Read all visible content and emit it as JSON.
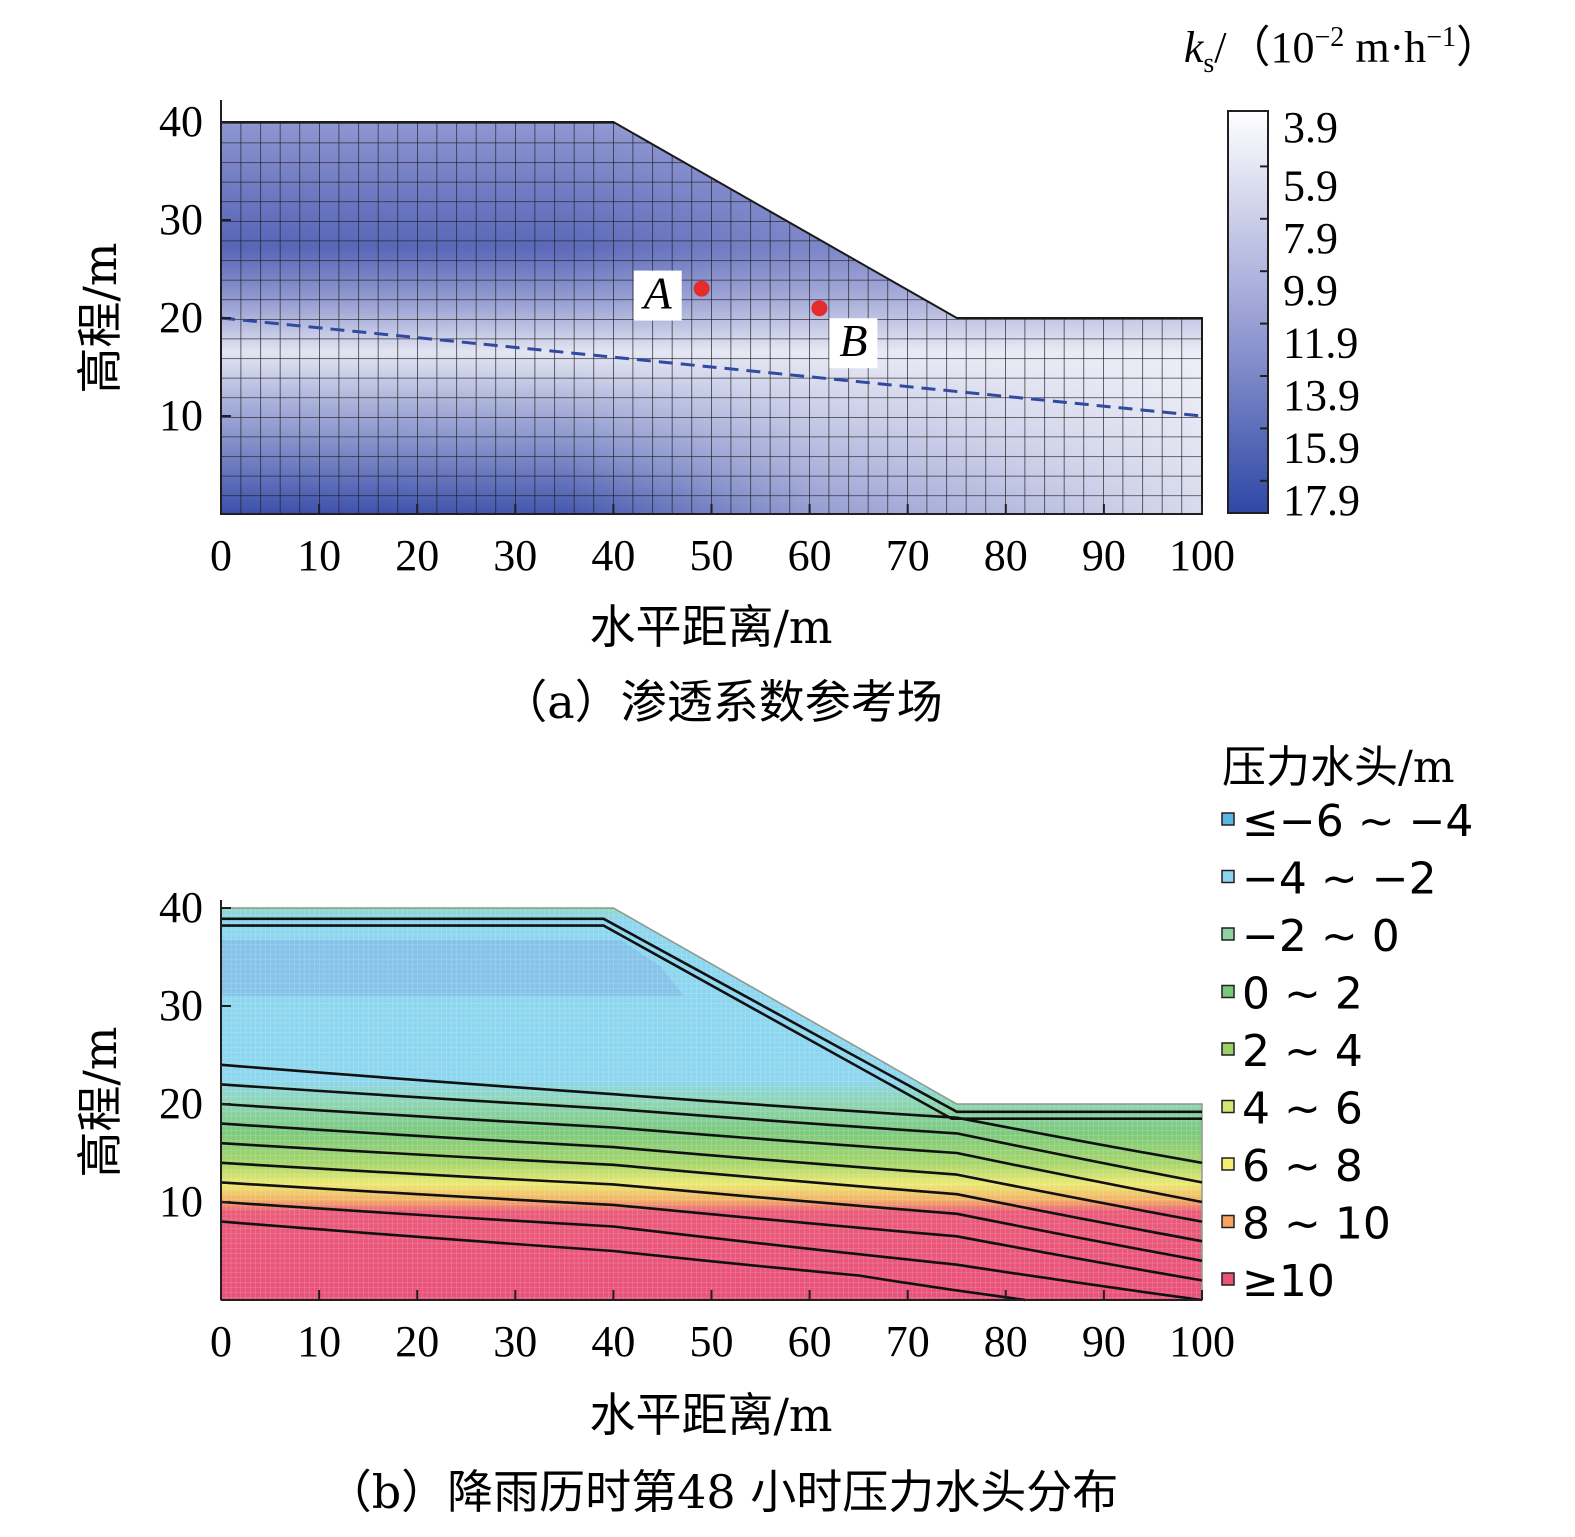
{
  "chart_data": [
    {
      "type": "heatmap",
      "panel": "a",
      "caption": "（a）渗透系数参考场",
      "xlabel": "水平距离/m",
      "ylabel": "高程/m",
      "xlim": [
        0,
        100
      ],
      "ylim": [
        0,
        40
      ],
      "x_ticks": [
        "0",
        "10",
        "20",
        "30",
        "40",
        "50",
        "60",
        "70",
        "80",
        "90",
        "100"
      ],
      "y_ticks": [
        "10",
        "20",
        "30",
        "40"
      ],
      "slope_profile": [
        [
          0,
          40
        ],
        [
          40,
          40
        ],
        [
          75,
          20
        ],
        [
          100,
          20
        ],
        [
          100,
          0
        ],
        [
          0,
          0
        ]
      ],
      "water_table": [
        [
          0,
          20
        ],
        [
          60,
          14
        ],
        [
          100,
          10
        ]
      ],
      "points": [
        {
          "label": "A",
          "x": 49,
          "y": 23
        },
        {
          "label": "B",
          "x": 61,
          "y": 21
        }
      ],
      "colorbar": {
        "title_k": "k",
        "title_sub": "s",
        "title_rest": "/（10",
        "title_exp1": "−2",
        "title_mid": " m·h",
        "title_exp2": "−1",
        "title_end": "）",
        "levels": [
          "3.9",
          "5.9",
          "7.9",
          "9.9",
          "11.9",
          "13.9",
          "15.9",
          "17.9"
        ],
        "low_color": "#ffffff",
        "high_color": "#2e48a6"
      }
    },
    {
      "type": "heatmap",
      "panel": "b",
      "caption": "（b）降雨历时第48 小时压力水头分布",
      "xlabel": "水平距离/m",
      "ylabel": "高程/m",
      "xlim": [
        0,
        100
      ],
      "ylim": [
        0,
        40
      ],
      "x_ticks": [
        "0",
        "10",
        "20",
        "30",
        "40",
        "50",
        "60",
        "70",
        "80",
        "90",
        "100"
      ],
      "y_ticks": [
        "10",
        "20",
        "30",
        "40"
      ],
      "legend_title": "压力水头/m",
      "legend": [
        {
          "label": "≤−6 ~ −4",
          "color": "#5ab4e6"
        },
        {
          "label": "−4 ~ −2",
          "color": "#8dd5ee"
        },
        {
          "label": "−2 ~ 0",
          "color": "#8fd3a5"
        },
        {
          "label": "0 ~ 2",
          "color": "#79c878"
        },
        {
          "label": "2 ~ 4",
          "color": "#9ad266"
        },
        {
          "label": "4 ~ 6",
          "color": "#d4e672"
        },
        {
          "label": "6 ~ 8",
          "color": "#f3ee74"
        },
        {
          "label": "8 ~ 10",
          "color": "#f5a35e"
        },
        {
          "label": "≥10",
          "color": "#ea5479"
        }
      ],
      "contours": [
        {
          "head": -4,
          "points": [
            [
              0,
              24
            ],
            [
              40,
              21
            ],
            [
              75,
              18.6
            ],
            [
              100,
              14
            ]
          ]
        },
        {
          "head": -2,
          "points": [
            [
              0,
              22
            ],
            [
              40,
              19.5
            ],
            [
              75,
              17
            ],
            [
              100,
              12
            ]
          ]
        },
        {
          "head": 0,
          "points": [
            [
              0,
              20
            ],
            [
              40,
              17.6
            ],
            [
              75,
              15
            ],
            [
              100,
              10
            ]
          ]
        },
        {
          "head": 2,
          "points": [
            [
              0,
              18
            ],
            [
              40,
              15.6
            ],
            [
              75,
              12.8
            ],
            [
              100,
              8
            ]
          ]
        },
        {
          "head": 4,
          "points": [
            [
              0,
              16
            ],
            [
              40,
              13.8
            ],
            [
              75,
              10.8
            ],
            [
              100,
              6
            ]
          ]
        },
        {
          "head": 6,
          "points": [
            [
              0,
              14
            ],
            [
              40,
              11.8
            ],
            [
              75,
              8.8
            ],
            [
              100,
              4
            ]
          ]
        },
        {
          "head": 8,
          "points": [
            [
              0,
              12
            ],
            [
              40,
              9.7
            ],
            [
              75,
              6.5
            ],
            [
              100,
              2
            ]
          ]
        },
        {
          "head": 10,
          "points": [
            [
              0,
              10
            ],
            [
              40,
              7.5
            ],
            [
              75,
              3.6
            ],
            [
              100,
              0
            ]
          ]
        },
        {
          "head": 12,
          "points": [
            [
              0,
              8
            ],
            [
              40,
              5
            ],
            [
              65,
              2.5
            ],
            [
              82,
              0
            ]
          ]
        }
      ],
      "wetting_front": [
        {
          "points": [
            [
              0,
              38.9
            ],
            [
              39,
              38.9
            ],
            [
              75,
              19.2
            ],
            [
              100,
              19.2
            ]
          ]
        },
        {
          "points": [
            [
              0,
              38.2
            ],
            [
              39,
              38.2
            ],
            [
              74.5,
              18.5
            ],
            [
              100,
              18.5
            ]
          ]
        }
      ]
    }
  ]
}
